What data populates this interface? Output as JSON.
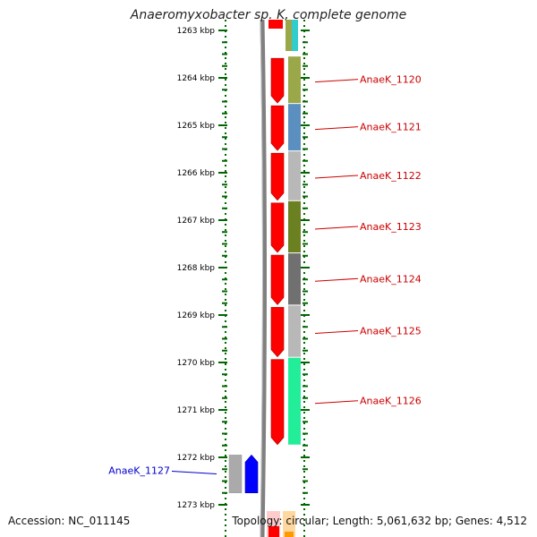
{
  "title": "Anaeromyxobacter sp. K, complete genome",
  "footer": {
    "accession": "Accession: NC_011145",
    "topology": "Topology: circular; Length: 5,061,632 bp; Genes: 4,512"
  },
  "axis": {
    "unit": "kbp",
    "ticks": [
      "1263 kbp",
      "1264 kbp",
      "1265 kbp",
      "1266 kbp",
      "1267 kbp",
      "1268 kbp",
      "1269 kbp",
      "1270 kbp",
      "1271 kbp",
      "1272 kbp",
      "1273 kbp"
    ],
    "range_kbp": [
      1262.8,
      1273.05
    ]
  },
  "colors": {
    "forward_strand": "#ff0000",
    "reverse_strand": "#0000ff",
    "label_forward": "#cc0000",
    "label_reverse": "#0000cc",
    "axis_ticks": "#006600",
    "backbone": "#808080"
  },
  "genes": [
    {
      "label": "AnaeK_1120",
      "start_kbp": 1263.55,
      "end_kbp": 1264.55,
      "strand": "+",
      "category_color": "#9aa84a"
    },
    {
      "label": "AnaeK_1121",
      "start_kbp": 1264.55,
      "end_kbp": 1265.55,
      "strand": "+",
      "category_color": "#5b8fbf"
    },
    {
      "label": "AnaeK_1122",
      "start_kbp": 1265.55,
      "end_kbp": 1266.6,
      "strand": "+",
      "category_color": "#b8b8b8"
    },
    {
      "label": "AnaeK_1123",
      "start_kbp": 1266.6,
      "end_kbp": 1267.7,
      "strand": "+",
      "category_color": "#6b8020"
    },
    {
      "label": "AnaeK_1124",
      "start_kbp": 1267.7,
      "end_kbp": 1268.8,
      "strand": "+",
      "category_color": "#707070"
    },
    {
      "label": "AnaeK_1125",
      "start_kbp": 1268.8,
      "end_kbp": 1269.9,
      "strand": "+",
      "category_color": "#b8b8b8"
    },
    {
      "label": "AnaeK_1126",
      "start_kbp": 1269.9,
      "end_kbp": 1271.75,
      "strand": "+",
      "category_color": "#22ee99"
    },
    {
      "label": "AnaeK_1127",
      "start_kbp": 1271.95,
      "end_kbp": 1272.75,
      "strand": "-",
      "category_color": "#aaaaaa"
    }
  ]
}
